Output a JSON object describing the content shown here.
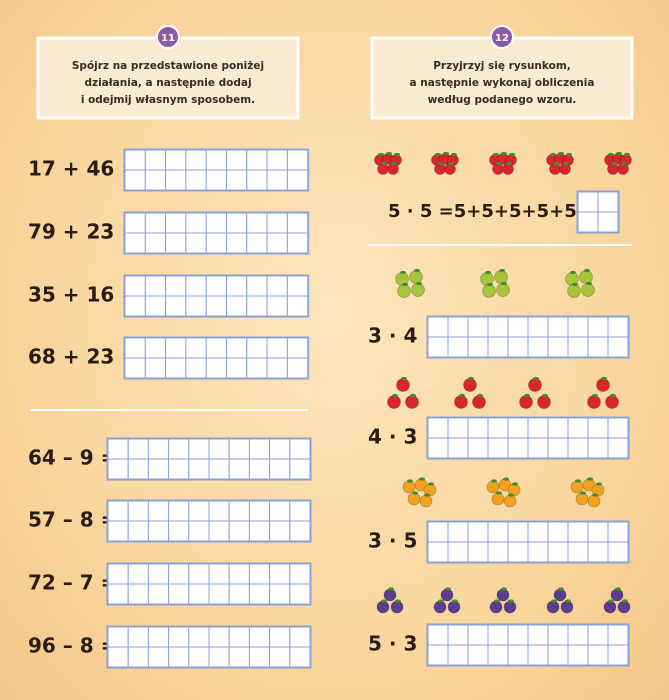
{
  "task_11": {
    "number": "11",
    "instruction": [
      "Spójrz na przedstawione poniżej",
      "działania, a następnie dodaj",
      "i odejmij własnym sposobem."
    ],
    "addition": [
      "17 + 46 =",
      "79 + 23 =",
      "35 + 16 =",
      "68 + 23 ="
    ],
    "subtraction": [
      "64 – 9 =",
      "57 – 8 =",
      "72 – 7 =",
      "96 – 8 ="
    ]
  },
  "task_12": {
    "number": "12",
    "instruction": [
      "Przyjrzyj się rysunkom,",
      "a następnie wykonaj obliczenia",
      "według podanego wzoru."
    ],
    "example": "5 · 5 =5+5+5+5+5=",
    "exercises": [
      "3 · 4 =",
      "4 · 3 =",
      "3 · 5 =",
      "5 · 3 ="
    ]
  }
}
